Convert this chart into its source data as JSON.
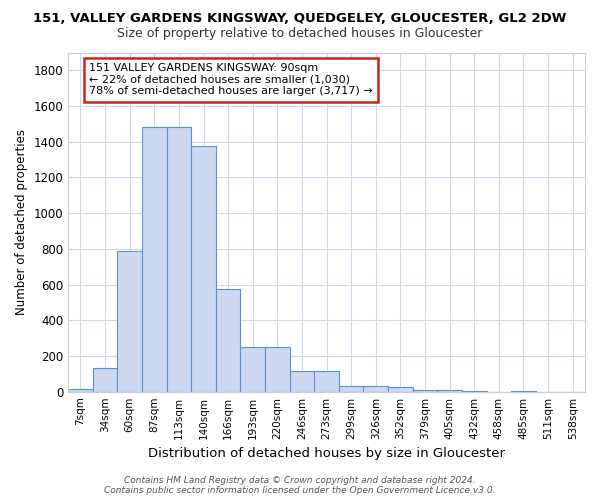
{
  "title1": "151, VALLEY GARDENS KINGSWAY, QUEDGELEY, GLOUCESTER, GL2 2DW",
  "title2": "Size of property relative to detached houses in Gloucester",
  "xlabel": "Distribution of detached houses by size in Gloucester",
  "ylabel": "Number of detached properties",
  "bar_labels": [
    "7sqm",
    "34sqm",
    "60sqm",
    "87sqm",
    "113sqm",
    "140sqm",
    "166sqm",
    "193sqm",
    "220sqm",
    "246sqm",
    "273sqm",
    "299sqm",
    "326sqm",
    "352sqm",
    "379sqm",
    "405sqm",
    "432sqm",
    "458sqm",
    "485sqm",
    "511sqm",
    "538sqm"
  ],
  "bar_values": [
    15,
    135,
    790,
    1480,
    1480,
    1375,
    575,
    250,
    250,
    115,
    115,
    30,
    30,
    25,
    10,
    10,
    5,
    0,
    5,
    0,
    0
  ],
  "bar_color": "#ccd9f0",
  "bar_edge_color": "#5b8fd4",
  "background_color": "#ffffff",
  "grid_color": "#d0d8ee",
  "annotation_text": "151 VALLEY GARDENS KINGSWAY: 90sqm\n← 22% of detached houses are smaller (1,030)\n78% of semi-detached houses are larger (3,717) →",
  "annotation_box_color": "#ffffff",
  "annotation_box_edge": "#cc2222",
  "footnote": "Contains HM Land Registry data © Crown copyright and database right 2024.\nContains public sector information licensed under the Open Government Licence v3.0.",
  "ylim": [
    0,
    1900
  ],
  "yticks": [
    0,
    200,
    400,
    600,
    800,
    1000,
    1200,
    1400,
    1600,
    1800
  ]
}
